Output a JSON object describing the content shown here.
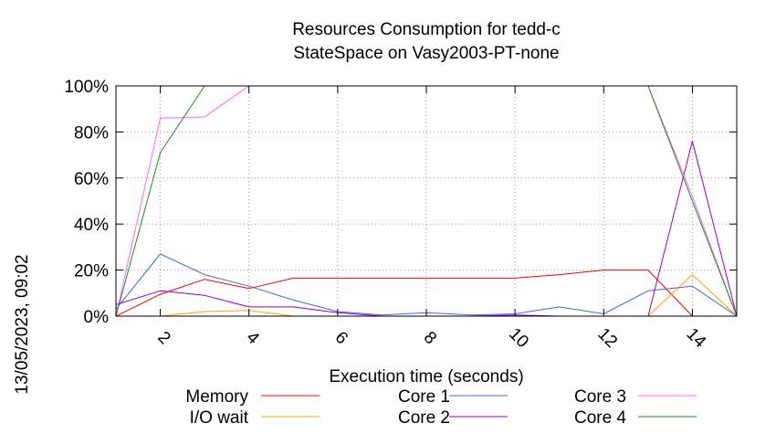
{
  "side_label": "13/05/2023, 09:02",
  "chart_data": {
    "type": "line",
    "title": "Resources Consumption for tedd-c",
    "subtitle": "StateSpace on Vasy2003-PT-none",
    "xlabel": "Execution time (seconds)",
    "ylabel": "",
    "xlim": [
      1,
      15
    ],
    "ylim": [
      0,
      100
    ],
    "grid": true,
    "legend_position": "bottom",
    "x_ticks": [
      {
        "value": 2,
        "label": "2"
      },
      {
        "value": 4,
        "label": "4"
      },
      {
        "value": 6,
        "label": "6"
      },
      {
        "value": 8,
        "label": "8"
      },
      {
        "value": 10,
        "label": "10"
      },
      {
        "value": 12,
        "label": "12"
      },
      {
        "value": 14,
        "label": "14"
      }
    ],
    "y_ticks": [
      {
        "value": 0,
        "label": "0%"
      },
      {
        "value": 20,
        "label": "20%"
      },
      {
        "value": 40,
        "label": "40%"
      },
      {
        "value": 60,
        "label": "60%"
      },
      {
        "value": 80,
        "label": "80%"
      },
      {
        "value": 100,
        "label": "100%"
      }
    ],
    "x": [
      1,
      2,
      3,
      4,
      5,
      6,
      7,
      8,
      9,
      10,
      11,
      12,
      13,
      14,
      15
    ],
    "series": [
      {
        "name": "Memory",
        "color": "#ff0000",
        "values": [
          0,
          9.5,
          16,
          12,
          16.5,
          16.5,
          16.5,
          16.5,
          16.5,
          16.5,
          18,
          20,
          20,
          0,
          0
        ]
      },
      {
        "name": "I/O wait",
        "color": "#ffa500",
        "values": [
          0,
          0,
          2,
          2.5,
          0,
          0,
          0,
          0,
          0,
          0,
          0,
          0,
          0,
          18,
          0
        ]
      },
      {
        "name": "Core 1",
        "color": "#4169e1",
        "values": [
          3,
          27,
          18,
          13,
          7,
          2,
          0.5,
          1.5,
          0.5,
          1,
          4,
          1,
          11,
          13,
          0
        ]
      },
      {
        "name": "Core 2",
        "color": "#9400d3",
        "values": [
          5,
          11,
          9,
          4,
          4,
          1.5,
          0,
          0,
          0,
          0.5,
          0,
          0,
          0,
          76,
          0
        ]
      },
      {
        "name": "Core 3",
        "color": "#ff66ff",
        "values": [
          0,
          86,
          86.5,
          100,
          100,
          100,
          100,
          100,
          100,
          100,
          100,
          100,
          100,
          52,
          0
        ]
      },
      {
        "name": "Core 4",
        "color": "#228b22",
        "values": [
          0,
          71,
          100,
          100,
          100,
          100,
          100,
          100,
          100,
          100,
          100,
          100,
          100,
          50,
          0
        ]
      }
    ]
  }
}
